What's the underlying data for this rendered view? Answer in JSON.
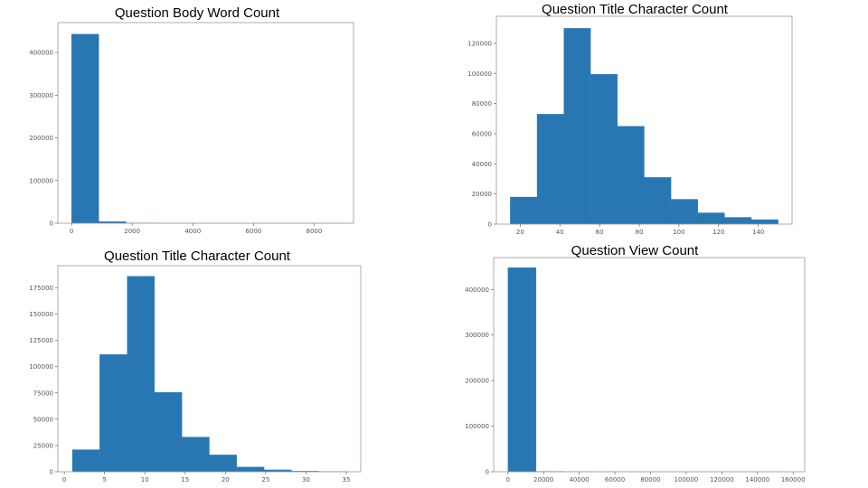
{
  "chart_data": [
    {
      "type": "bar",
      "title": "Question Body Word Count",
      "xlabel": "",
      "ylabel": "",
      "xlim": [
        -450,
        9300
      ],
      "ylim": [
        0,
        470000
      ],
      "xticks": [
        0,
        2000,
        4000,
        6000,
        8000
      ],
      "yticks": [
        0,
        100000,
        200000,
        300000,
        400000
      ],
      "bins": [
        {
          "x0": 0,
          "x1": 900,
          "value": 443000
        },
        {
          "x0": 900,
          "x1": 1800,
          "value": 4000
        },
        {
          "x0": 1800,
          "x1": 2700,
          "value": 600
        },
        {
          "x0": 2700,
          "x1": 3600,
          "value": 150
        },
        {
          "x0": 3600,
          "x1": 4500,
          "value": 50
        },
        {
          "x0": 4500,
          "x1": 5400,
          "value": 20
        },
        {
          "x0": 5400,
          "x1": 6300,
          "value": 10
        },
        {
          "x0": 6300,
          "x1": 7200,
          "value": 5
        },
        {
          "x0": 7200,
          "x1": 8100,
          "value": 3
        },
        {
          "x0": 8100,
          "x1": 9000,
          "value": 1
        }
      ],
      "grid": false,
      "color": "#2877b2"
    },
    {
      "type": "bar",
      "title": "Question Title Character Count",
      "xlabel": "",
      "ylabel": "",
      "xlim": [
        8,
        157
      ],
      "ylim": [
        0,
        138000
      ],
      "xticks": [
        20,
        40,
        60,
        80,
        100,
        120,
        140
      ],
      "yticks": [
        0,
        20000,
        40000,
        60000,
        80000,
        100000,
        120000
      ],
      "bins": [
        {
          "x0": 15,
          "x1": 28.5,
          "value": 18000
        },
        {
          "x0": 28.5,
          "x1": 42,
          "value": 73000
        },
        {
          "x0": 42,
          "x1": 55.5,
          "value": 130000
        },
        {
          "x0": 55.5,
          "x1": 69,
          "value": 99500
        },
        {
          "x0": 69,
          "x1": 82.5,
          "value": 65000
        },
        {
          "x0": 82.5,
          "x1": 96,
          "value": 31000
        },
        {
          "x0": 96,
          "x1": 109.5,
          "value": 16500
        },
        {
          "x0": 109.5,
          "x1": 123,
          "value": 7500
        },
        {
          "x0": 123,
          "x1": 136.5,
          "value": 4500
        },
        {
          "x0": 136.5,
          "x1": 150,
          "value": 3000
        }
      ],
      "grid": false,
      "color": "#2877b2"
    },
    {
      "type": "bar",
      "title": "Question Title Character Count",
      "xlabel": "",
      "ylabel": "",
      "xlim": [
        -0.8,
        36.8
      ],
      "ylim": [
        0,
        196000
      ],
      "xticks": [
        0,
        5,
        10,
        15,
        20,
        25,
        30,
        35
      ],
      "yticks": [
        0,
        25000,
        50000,
        75000,
        100000,
        125000,
        150000,
        175000
      ],
      "bins": [
        {
          "x0": 1,
          "x1": 4.4,
          "value": 21000
        },
        {
          "x0": 4.4,
          "x1": 7.8,
          "value": 111500
        },
        {
          "x0": 7.8,
          "x1": 11.2,
          "value": 186000
        },
        {
          "x0": 11.2,
          "x1": 14.6,
          "value": 75500
        },
        {
          "x0": 14.6,
          "x1": 18,
          "value": 33000
        },
        {
          "x0": 18,
          "x1": 21.4,
          "value": 16000
        },
        {
          "x0": 21.4,
          "x1": 24.8,
          "value": 4500
        },
        {
          "x0": 24.8,
          "x1": 28.2,
          "value": 1800
        },
        {
          "x0": 28.2,
          "x1": 31.6,
          "value": 600
        },
        {
          "x0": 31.6,
          "x1": 35,
          "value": 200
        }
      ],
      "grid": false,
      "color": "#2877b2"
    },
    {
      "type": "bar",
      "title": "Question View Count",
      "xlabel": "",
      "ylabel": "",
      "xlim": [
        -8000,
        166500
      ],
      "ylim": [
        0,
        470000
      ],
      "xticks": [
        0,
        20000,
        40000,
        60000,
        80000,
        100000,
        120000,
        140000,
        160000
      ],
      "yticks": [
        0,
        100000,
        200000,
        300000,
        400000
      ],
      "bins": [
        {
          "x0": 0,
          "x1": 15800,
          "value": 448000
        },
        {
          "x0": 15800,
          "x1": 31600,
          "value": 800
        },
        {
          "x0": 31600,
          "x1": 47400,
          "value": 150
        },
        {
          "x0": 47400,
          "x1": 63200,
          "value": 50
        },
        {
          "x0": 63200,
          "x1": 79000,
          "value": 20
        },
        {
          "x0": 79000,
          "x1": 94800,
          "value": 10
        },
        {
          "x0": 94800,
          "x1": 110600,
          "value": 5
        },
        {
          "x0": 110600,
          "x1": 126400,
          "value": 3
        },
        {
          "x0": 126400,
          "x1": 142200,
          "value": 2
        },
        {
          "x0": 142200,
          "x1": 158000,
          "value": 1
        }
      ],
      "grid": false,
      "color": "#2877b2"
    }
  ]
}
